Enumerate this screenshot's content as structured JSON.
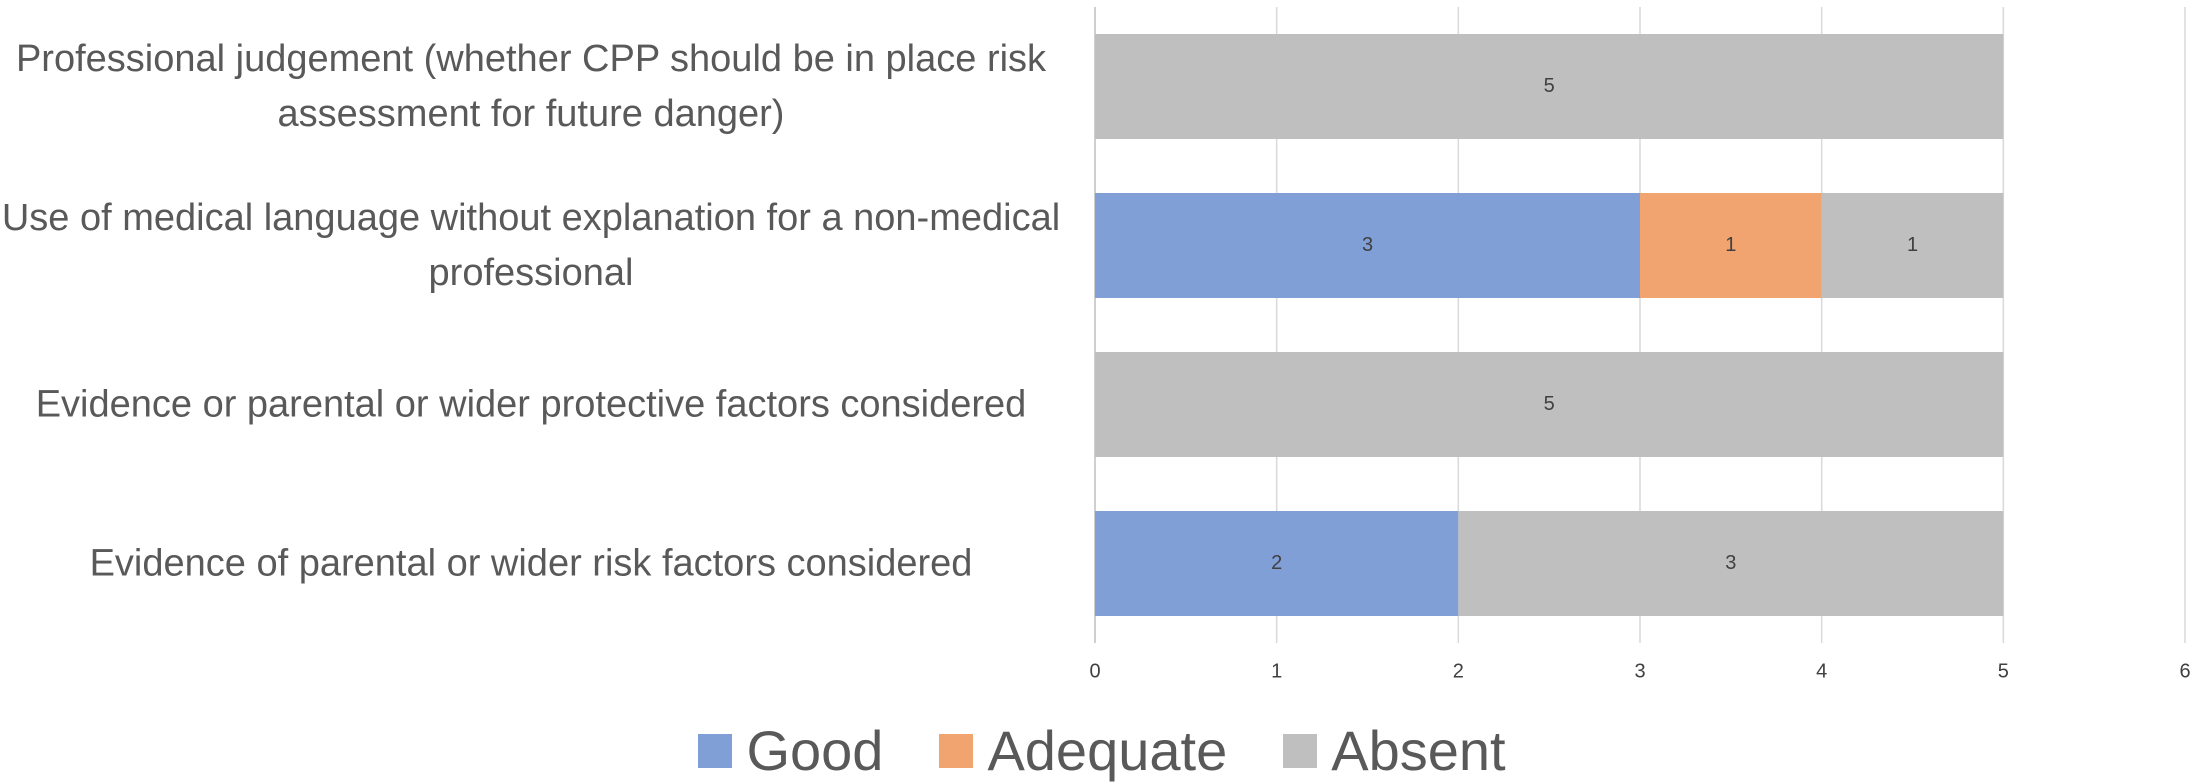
{
  "chart_data": {
    "type": "stacked-barh",
    "categories": [
      "Professional judgement  (whether CPP should be in place risk assessment for future danger)",
      "Use of medical language without explanation for a non-medical professional",
      "Evidence or parental or wider protective factors considered",
      "Evidence of parental or wider risk factors considered"
    ],
    "series": [
      {
        "name": "Good",
        "color": "#7f9fd6",
        "values": [
          0,
          3,
          0,
          2
        ]
      },
      {
        "name": "Adequate",
        "color": "#f1a46f",
        "values": [
          0,
          1,
          0,
          0
        ]
      },
      {
        "name": "Absent",
        "color": "#bfbfbf",
        "values": [
          5,
          1,
          5,
          3
        ]
      }
    ],
    "xlim": [
      0,
      6
    ],
    "xticks": [
      0,
      1,
      2,
      3,
      4,
      5,
      6
    ],
    "grid": true,
    "legend": "bottom"
  }
}
